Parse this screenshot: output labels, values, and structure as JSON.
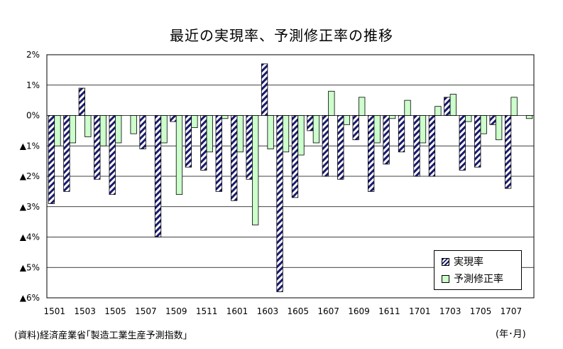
{
  "chart_data": {
    "type": "bar",
    "title": "最近の実現率、予測修正率の推移",
    "ytick_labels": [
      "2%",
      "1%",
      "0%",
      "▲1%",
      "▲2%",
      "▲3%",
      "▲4%",
      "▲5%",
      "▲6%"
    ],
    "ytick_values": [
      2,
      1,
      0,
      -1,
      -2,
      -3,
      -4,
      -5,
      -6
    ],
    "ylim": [
      -6,
      2
    ],
    "grid": true,
    "legend_position": "bottom-right",
    "categories": [
      "1501",
      "1502",
      "1503",
      "1504",
      "1505",
      "1506",
      "1507",
      "1508",
      "1509",
      "1510",
      "1511",
      "1512",
      "1601",
      "1602",
      "1603",
      "1604",
      "1605",
      "1606",
      "1607",
      "1608",
      "1609",
      "1610",
      "1611",
      "1612",
      "1701",
      "1702",
      "1703",
      "1704",
      "1705",
      "1706",
      "1707",
      "1708"
    ],
    "xtick_labels": [
      "1501",
      "1503",
      "1505",
      "1507",
      "1509",
      "1511",
      "1601",
      "1603",
      "1605",
      "1607",
      "1609",
      "1611",
      "1701",
      "1703",
      "1705",
      "1707"
    ],
    "series": [
      {
        "name": "実現率",
        "fill": "hatched",
        "color": "#1a1a6e",
        "values": [
          -2.9,
          -2.5,
          0.9,
          -2.1,
          -2.6,
          null,
          -1.1,
          -4.0,
          -0.2,
          -1.7,
          -1.8,
          -2.5,
          -2.8,
          -2.1,
          1.7,
          -5.8,
          -2.7,
          -0.5,
          -2.0,
          -2.1,
          -0.8,
          -2.5,
          -1.6,
          -1.2,
          -2.0,
          -2.0,
          0.6,
          -1.8,
          -1.7,
          -0.3,
          -2.4,
          null
        ]
      },
      {
        "name": "予測修正率",
        "fill": "solid",
        "color": "#ccffcc",
        "values": [
          -1.0,
          -0.9,
          -0.7,
          -1.0,
          -0.9,
          -0.6,
          null,
          -0.9,
          -2.6,
          -0.4,
          -1.2,
          -0.1,
          -1.2,
          -3.6,
          -1.1,
          -1.2,
          -1.3,
          -0.9,
          0.8,
          -0.3,
          0.6,
          -0.9,
          -0.1,
          0.5,
          -0.9,
          0.3,
          0.7,
          -0.2,
          -0.6,
          -0.8,
          0.6,
          -0.1
        ]
      }
    ]
  },
  "source_note": "(資料)経済産業省｢製造工業生産予測指数｣",
  "unit_note": "(年･月)"
}
